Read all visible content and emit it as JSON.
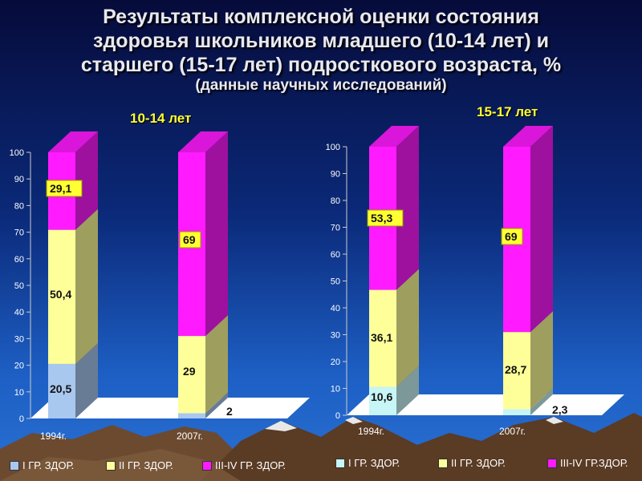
{
  "title": {
    "line1": "Результаты комплексной оценки состояния",
    "line2": "здоровья школьников младшего (10-14 лет) и",
    "line3": "старшего (15-17 лет) подросткового возраста, %",
    "sub": "(данные научных исследований)"
  },
  "colors": {
    "group1": "#a9c8f0",
    "group2": "#ffff99",
    "group3": "#ff1aff",
    "group1_right": "#c8f5f5"
  },
  "chart_data": [
    {
      "type": "bar",
      "stacked": true,
      "title": "10-14 лет",
      "categories": [
        "1994г.",
        "2007г."
      ],
      "ylim": [
        0,
        100
      ],
      "yticks": [
        "0",
        "10",
        "20",
        "30",
        "40",
        "50",
        "60",
        "70",
        "80",
        "90",
        "100"
      ],
      "series": [
        {
          "name": "I ГР. ЗДОР.",
          "values": [
            20.5,
            2
          ],
          "labels": [
            "20,5",
            "2"
          ]
        },
        {
          "name": "II ГР. ЗДОР.",
          "values": [
            50.4,
            29
          ],
          "labels": [
            "50,4",
            "29"
          ]
        },
        {
          "name": "III-IV ГР. ЗДОР.",
          "values": [
            29.1,
            69
          ],
          "labels": [
            "29,1",
            "69"
          ]
        }
      ]
    },
    {
      "type": "bar",
      "stacked": true,
      "title": "15-17 лет",
      "categories": [
        "1994г.",
        "2007г."
      ],
      "ylim": [
        0,
        100
      ],
      "yticks": [
        "0",
        "10",
        "20",
        "30",
        "40",
        "50",
        "60",
        "70",
        "80",
        "90",
        "100"
      ],
      "series": [
        {
          "name": "I ГР. ЗДОР.",
          "values": [
            10.6,
            2.3
          ],
          "labels": [
            "10,6",
            "2,3"
          ]
        },
        {
          "name": "II ГР. ЗДОР.",
          "values": [
            36.1,
            28.7
          ],
          "labels": [
            "36,1",
            "28,7"
          ]
        },
        {
          "name": "III-IV ГР.ЗДОР.",
          "values": [
            53.3,
            69
          ],
          "labels": [
            "53,3",
            "69"
          ]
        }
      ]
    }
  ]
}
